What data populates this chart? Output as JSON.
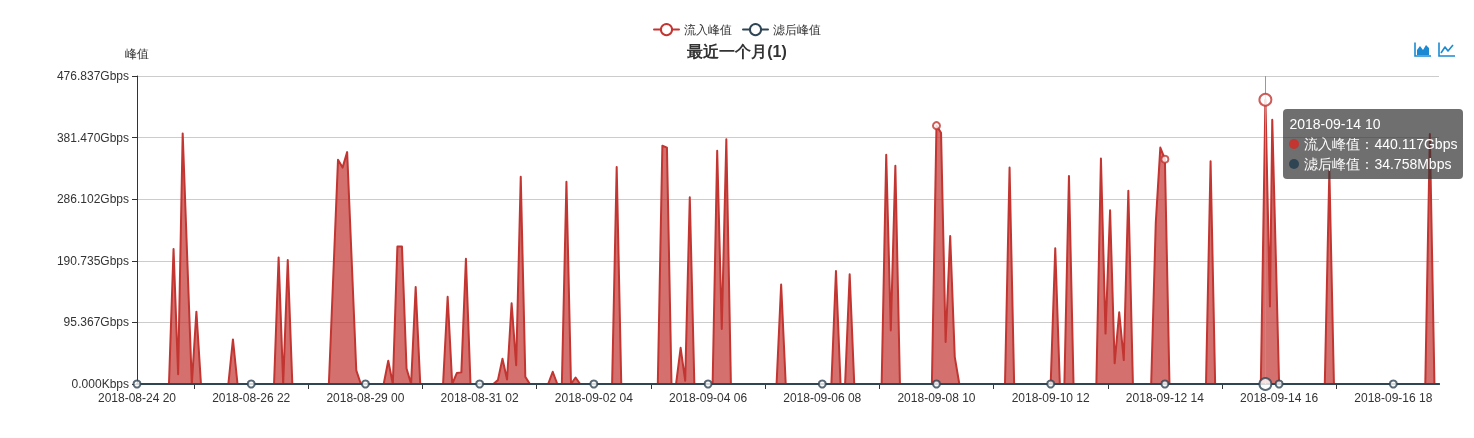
{
  "chart_data": {
    "type": "area",
    "title": "最近一个月(1)",
    "ylabel": "峰值",
    "xlim": [
      "2018-08-24T20:00",
      "2018-09-17T14:00"
    ],
    "xticks": [
      {
        "value": "2018-08-24T20:00",
        "label": "2018-08-24 20"
      },
      {
        "value": "2018-08-25T21:00",
        "label": null
      },
      {
        "value": "2018-08-26T22:00",
        "label": "2018-08-26 22"
      },
      {
        "value": "2018-08-27T23:00",
        "label": null
      },
      {
        "value": "2018-08-29T00:00",
        "label": "2018-08-29 00"
      },
      {
        "value": "2018-08-30T01:00",
        "label": null
      },
      {
        "value": "2018-08-31T02:00",
        "label": "2018-08-31 02"
      },
      {
        "value": "2018-09-01T03:00",
        "label": null
      },
      {
        "value": "2018-09-02T04:00",
        "label": "2018-09-02 04"
      },
      {
        "value": "2018-09-03T05:00",
        "label": null
      },
      {
        "value": "2018-09-04T06:00",
        "label": "2018-09-04 06"
      },
      {
        "value": "2018-09-05T07:00",
        "label": null
      },
      {
        "value": "2018-09-06T08:00",
        "label": "2018-09-06 08"
      },
      {
        "value": "2018-09-07T09:00",
        "label": null
      },
      {
        "value": "2018-09-08T10:00",
        "label": "2018-09-08 10"
      },
      {
        "value": "2018-09-09T11:00",
        "label": null
      },
      {
        "value": "2018-09-10T12:00",
        "label": "2018-09-10 12"
      },
      {
        "value": "2018-09-11T13:00",
        "label": null
      },
      {
        "value": "2018-09-12T14:00",
        "label": "2018-09-12 14"
      },
      {
        "value": "2018-09-13T15:00",
        "label": null
      },
      {
        "value": "2018-09-14T16:00",
        "label": "2018-09-14 16"
      },
      {
        "value": "2018-09-15T17:00",
        "label": null
      },
      {
        "value": "2018-09-16T18:00",
        "label": "2018-09-16 18"
      }
    ],
    "ylim": [
      0,
      476.837
    ],
    "yticks": [
      {
        "value": 0,
        "label": "0.000Kbps"
      },
      {
        "value": 95.367,
        "label": "95.367Gbps"
      },
      {
        "value": 190.735,
        "label": "190.735Gbps"
      },
      {
        "value": 286.102,
        "label": "286.102Gbps"
      },
      {
        "value": 381.47,
        "label": "381.470Gbps"
      },
      {
        "value": 476.837,
        "label": "476.837Gbps"
      }
    ],
    "series": [
      {
        "name": "流入峰值",
        "color": "#c23531",
        "marker": "none",
        "x": [
          "2018-08-24T20:00",
          "2018-08-25T10:00",
          "2018-08-25T12:00",
          "2018-08-25T14:00",
          "2018-08-25T16:00",
          "2018-08-25T20:00",
          "2018-08-25T22:00",
          "2018-08-26T00:00",
          "2018-08-26T12:00",
          "2018-08-26T14:00",
          "2018-08-26T16:00",
          "2018-08-26T22:00",
          "2018-08-27T08:00",
          "2018-08-27T10:00",
          "2018-08-27T12:00",
          "2018-08-27T14:00",
          "2018-08-27T16:00",
          "2018-08-28T08:00",
          "2018-08-28T12:00",
          "2018-08-28T14:00",
          "2018-08-28T16:00",
          "2018-08-28T20:00",
          "2018-08-28T22:00",
          "2018-08-29T00:00",
          "2018-08-29T08:00",
          "2018-08-29T10:00",
          "2018-08-29T12:00",
          "2018-08-29T14:00",
          "2018-08-29T16:00",
          "2018-08-29T18:00",
          "2018-08-29T20:00",
          "2018-08-29T22:00",
          "2018-08-30T00:00",
          "2018-08-30T10:00",
          "2018-08-30T12:00",
          "2018-08-30T14:00",
          "2018-08-30T16:00",
          "2018-08-30T18:00",
          "2018-08-30T20:00",
          "2018-08-30T22:00",
          "2018-08-31T02:00",
          "2018-08-31T08:00",
          "2018-08-31T10:00",
          "2018-08-31T12:00",
          "2018-08-31T14:00",
          "2018-08-31T16:00",
          "2018-08-31T18:00",
          "2018-08-31T20:00",
          "2018-08-31T22:00",
          "2018-09-01T00:00",
          "2018-09-01T08:00",
          "2018-09-01T10:00",
          "2018-09-01T12:00",
          "2018-09-01T14:00",
          "2018-09-01T16:00",
          "2018-09-01T18:00",
          "2018-09-01T20:00",
          "2018-09-01T22:00",
          "2018-09-02T04:00",
          "2018-09-02T12:00",
          "2018-09-02T14:00",
          "2018-09-02T16:00",
          "2018-09-03T08:00",
          "2018-09-03T10:00",
          "2018-09-03T12:00",
          "2018-09-03T14:00",
          "2018-09-03T16:00",
          "2018-09-03T18:00",
          "2018-09-03T20:00",
          "2018-09-03T22:00",
          "2018-09-04T00:00",
          "2018-09-04T06:00",
          "2018-09-04T08:00",
          "2018-09-04T10:00",
          "2018-09-04T12:00",
          "2018-09-04T14:00",
          "2018-09-04T16:00",
          "2018-09-05T12:00",
          "2018-09-05T14:00",
          "2018-09-05T16:00",
          "2018-09-06T08:00",
          "2018-09-06T12:00",
          "2018-09-06T14:00",
          "2018-09-06T16:00",
          "2018-09-06T18:00",
          "2018-09-06T20:00",
          "2018-09-06T22:00",
          "2018-09-07T10:00",
          "2018-09-07T12:00",
          "2018-09-07T14:00",
          "2018-09-07T16:00",
          "2018-09-07T18:00",
          "2018-09-08T08:00",
          "2018-09-08T10:00",
          "2018-09-08T12:00",
          "2018-09-08T14:00",
          "2018-09-08T16:00",
          "2018-09-08T18:00",
          "2018-09-08T20:00",
          "2018-09-09T16:00",
          "2018-09-09T18:00",
          "2018-09-09T20:00",
          "2018-09-10T12:00",
          "2018-09-10T14:00",
          "2018-09-10T16:00",
          "2018-09-10T18:00",
          "2018-09-10T20:00",
          "2018-09-10T22:00",
          "2018-09-11T08:00",
          "2018-09-11T10:00",
          "2018-09-11T12:00",
          "2018-09-11T14:00",
          "2018-09-11T16:00",
          "2018-09-11T18:00",
          "2018-09-11T20:00",
          "2018-09-11T22:00",
          "2018-09-12T00:00",
          "2018-09-12T08:00",
          "2018-09-12T10:00",
          "2018-09-12T12:00",
          "2018-09-12T14:00",
          "2018-09-12T16:00",
          "2018-09-13T08:00",
          "2018-09-13T10:00",
          "2018-09-13T12:00",
          "2018-09-14T08:00",
          "2018-09-14T10:00",
          "2018-09-14T12:00",
          "2018-09-14T13:00",
          "2018-09-14T16:00",
          "2018-09-15T12:00",
          "2018-09-15T14:00",
          "2018-09-15T16:00",
          "2018-09-16T18:00",
          "2018-09-17T08:00",
          "2018-09-17T10:00",
          "2018-09-17T12:00",
          "2018-09-17T14:00"
        ],
        "values": [
          0,
          0,
          209,
          15,
          388,
          0,
          112,
          0,
          0,
          69,
          0,
          0,
          0,
          196,
          0,
          192,
          0,
          0,
          347,
          335,
          359,
          21,
          0,
          0,
          0,
          36,
          0,
          213,
          213,
          24,
          0,
          150,
          0,
          0,
          135,
          0,
          17,
          18,
          194,
          0,
          0,
          0,
          6,
          39,
          7,
          125,
          29,
          321,
          11,
          0,
          0,
          19,
          0,
          0,
          313,
          0,
          10,
          0,
          0,
          0,
          336,
          0,
          0,
          369,
          366,
          0,
          0,
          56,
          5,
          289,
          0,
          0,
          0,
          361,
          85,
          379,
          0,
          0,
          154,
          0,
          0,
          0,
          175,
          0,
          0,
          170,
          0,
          0,
          355,
          83,
          338,
          0,
          0,
          400,
          389,
          65,
          229,
          42,
          0,
          0,
          335,
          0,
          0,
          210,
          0,
          0,
          322,
          0,
          0,
          349,
          78,
          269,
          32,
          111,
          37,
          299,
          0,
          0,
          249,
          366,
          348,
          0,
          0,
          345,
          0,
          0,
          440.117,
          120,
          409,
          0,
          0,
          331,
          0,
          0,
          0,
          387,
          0,
          0
        ]
      },
      {
        "name": "滤后峰值",
        "color": "#2f4554",
        "type": "line",
        "marker": "none",
        "x": [
          "2018-08-24T20:00",
          "2018-08-25T21:00",
          "2018-08-26T22:00",
          "2018-08-27T23:00",
          "2018-08-29T00:00",
          "2018-08-30T01:00",
          "2018-08-31T02:00",
          "2018-09-01T03:00",
          "2018-09-02T04:00",
          "2018-09-03T05:00",
          "2018-09-04T06:00",
          "2018-09-05T07:00",
          "2018-09-06T08:00",
          "2018-09-07T09:00",
          "2018-09-08T10:00",
          "2018-09-09T11:00",
          "2018-09-10T12:00",
          "2018-09-11T13:00",
          "2018-09-12T14:00",
          "2018-09-13T15:00",
          "2018-09-14T10:00",
          "2018-09-14T16:00",
          "2018-09-15T17:00",
          "2018-09-16T18:00",
          "2018-09-17T14:00"
        ],
        "values": [
          0,
          0,
          0,
          0,
          0,
          0,
          0,
          0,
          0,
          0,
          0,
          0,
          0,
          0,
          0,
          0,
          0,
          0,
          0,
          0,
          0.034758,
          0,
          0,
          0,
          0
        ]
      },
      {
        "type": "scatter",
        "color": "#c23531",
        "x": [
          "2018-09-08T10:00",
          "2018-09-12T14:00",
          "2018-09-14T10:00"
        ],
        "values": [
          400,
          348,
          440.117
        ]
      },
      {
        "type": "scatter",
        "color": "#2f4554",
        "x": [
          "2018-08-24T20:00",
          "2018-08-26T22:00",
          "2018-08-29T00:00",
          "2018-08-31T02:00",
          "2018-09-02T04:00",
          "2018-09-04T06:00",
          "2018-09-06T08:00",
          "2018-09-08T10:00",
          "2018-09-10T12:00",
          "2018-09-12T14:00",
          "2018-09-14T10:00",
          "2018-09-14T16:00",
          "2018-09-16T18:00"
        ],
        "values": [
          0,
          0,
          0,
          0,
          0,
          0,
          0,
          0,
          0,
          0,
          0.034758,
          0,
          0
        ]
      }
    ],
    "ref_lines": [
      {
        "axis": "x",
        "value": "2018-09-14T10:00",
        "color": "#999999"
      }
    ],
    "annotations": [
      "2018-09-14 10",
      "流入峰值：440.117Gbps",
      "滤后峰值：34.758Mbps"
    ],
    "grid": "y",
    "legend": "top",
    "marker": "circle"
  }
}
